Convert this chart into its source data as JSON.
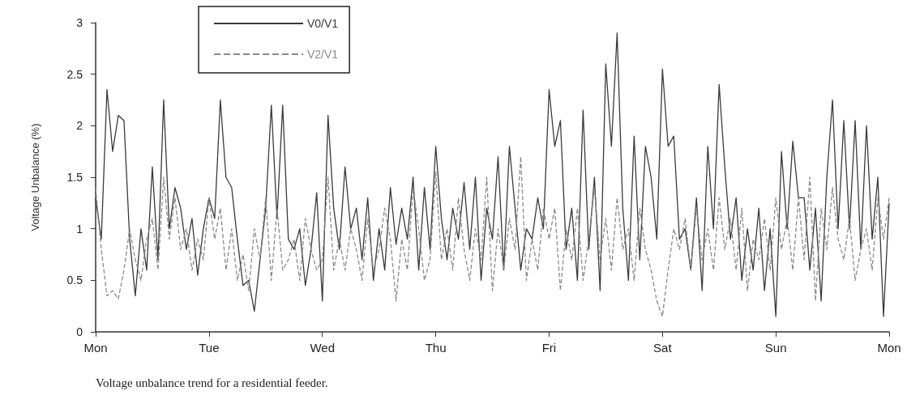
{
  "chart_data": {
    "type": "line",
    "ylabel": "Voltage Unbalance (%)",
    "annotations": [
      "Voltage unbalance trend for a residential feeder."
    ],
    "categories": [
      "Mon",
      null,
      null,
      null,
      null,
      null,
      null,
      null,
      null,
      null,
      null,
      null,
      null,
      null,
      null,
      null,
      null,
      null,
      null,
      null,
      "Tue",
      null,
      null,
      null,
      null,
      null,
      null,
      null,
      null,
      null,
      null,
      null,
      null,
      null,
      null,
      null,
      null,
      null,
      null,
      null,
      "Wed",
      null,
      null,
      null,
      null,
      null,
      null,
      null,
      null,
      null,
      null,
      null,
      null,
      null,
      null,
      null,
      null,
      null,
      null,
      null,
      "Thu",
      null,
      null,
      null,
      null,
      null,
      null,
      null,
      null,
      null,
      null,
      null,
      null,
      null,
      null,
      null,
      null,
      null,
      null,
      null,
      "Fri",
      null,
      null,
      null,
      null,
      null,
      null,
      null,
      null,
      null,
      null,
      null,
      null,
      null,
      null,
      null,
      null,
      null,
      null,
      null,
      "Sat",
      null,
      null,
      null,
      null,
      null,
      null,
      null,
      null,
      null,
      null,
      null,
      null,
      null,
      null,
      null,
      null,
      null,
      null,
      null,
      "Sun",
      null,
      null,
      null,
      null,
      null,
      null,
      null,
      null,
      null,
      null,
      null,
      null,
      null,
      null,
      null,
      null,
      null,
      null,
      null,
      "Mon"
    ],
    "ylim": [
      0,
      3
    ],
    "yticks": [
      0,
      0.5,
      1,
      1.5,
      2,
      2.5,
      3
    ],
    "grid": false,
    "legend": "top left",
    "marker": "none",
    "series": [
      {
        "name": "V0/V1",
        "color": "#3a3a3a",
        "line_style": "solid",
        "values": [
          1.3,
          0.9,
          2.35,
          1.75,
          2.1,
          2.05,
          0.9,
          0.35,
          1.0,
          0.6,
          1.6,
          0.7,
          2.25,
          1.0,
          1.4,
          1.2,
          0.8,
          1.1,
          0.55,
          1.0,
          1.3,
          1.1,
          2.25,
          1.5,
          1.4,
          0.9,
          0.45,
          0.5,
          0.2,
          0.7,
          1.2,
          2.2,
          1.1,
          2.2,
          0.9,
          0.8,
          1.0,
          0.45,
          0.8,
          1.35,
          0.3,
          2.1,
          1.2,
          0.8,
          1.6,
          1.0,
          1.2,
          0.7,
          1.3,
          0.5,
          1.0,
          0.6,
          1.4,
          0.85,
          1.2,
          0.9,
          1.5,
          0.6,
          1.4,
          0.8,
          1.8,
          1.1,
          0.7,
          1.2,
          0.9,
          1.45,
          0.8,
          1.5,
          0.5,
          1.2,
          0.9,
          1.7,
          0.6,
          1.8,
          1.2,
          0.6,
          1.0,
          0.9,
          1.3,
          1.0,
          2.35,
          1.8,
          2.05,
          0.8,
          1.2,
          0.5,
          2.15,
          0.8,
          1.5,
          0.4,
          2.6,
          1.8,
          2.9,
          1.2,
          0.5,
          1.9,
          0.7,
          1.8,
          1.5,
          0.9,
          2.55,
          1.8,
          1.9,
          0.9,
          1.0,
          0.6,
          1.3,
          0.4,
          1.8,
          1.0,
          2.4,
          1.6,
          0.9,
          1.3,
          0.5,
          1.0,
          0.6,
          1.2,
          0.4,
          1.0,
          0.15,
          1.75,
          1.0,
          1.85,
          1.3,
          1.3,
          0.6,
          1.2,
          0.3,
          1.5,
          2.25,
          1.0,
          2.05,
          1.0,
          2.05,
          0.8,
          2.0,
          0.9,
          1.5,
          0.15,
          1.25
        ]
      },
      {
        "name": "V2/V1",
        "color": "#8a8a8a",
        "line_style": "dashed",
        "values": [
          1.4,
          0.8,
          0.35,
          0.4,
          0.32,
          0.6,
          1.0,
          0.7,
          0.5,
          0.9,
          1.1,
          0.6,
          1.5,
          0.9,
          1.3,
          0.8,
          1.0,
          0.6,
          0.9,
          0.7,
          1.3,
          0.9,
          1.2,
          0.6,
          1.0,
          0.5,
          0.75,
          0.4,
          1.0,
          0.7,
          1.3,
          0.5,
          1.2,
          0.6,
          0.7,
          0.9,
          0.5,
          1.1,
          0.8,
          0.6,
          0.7,
          1.5,
          0.6,
          0.9,
          0.6,
          1.0,
          0.8,
          0.5,
          1.1,
          0.6,
          0.8,
          1.2,
          0.9,
          0.3,
          0.9,
          0.6,
          1.4,
          1.0,
          0.5,
          0.7,
          1.55,
          0.7,
          1.0,
          0.6,
          1.3,
          0.8,
          0.5,
          1.0,
          0.7,
          1.5,
          0.4,
          1.0,
          0.6,
          1.1,
          0.8,
          1.7,
          0.5,
          0.9,
          0.6,
          1.2,
          0.9,
          1.2,
          0.4,
          1.0,
          0.7,
          1.2,
          0.5,
          0.9,
          1.4,
          0.7,
          1.1,
          0.6,
          1.3,
          0.8,
          1.0,
          0.5,
          1.2,
          0.8,
          0.6,
          0.3,
          0.15,
          0.6,
          1.0,
          0.8,
          1.1,
          0.6,
          1.2,
          0.7,
          1.0,
          0.6,
          1.3,
          0.8,
          1.1,
          0.6,
          1.2,
          0.4,
          0.9,
          0.7,
          1.1,
          0.6,
          1.3,
          0.8,
          1.1,
          0.6,
          1.3,
          0.7,
          1.5,
          0.3,
          1.2,
          0.8,
          1.4,
          0.9,
          0.7,
          1.1,
          0.5,
          0.8,
          1.0,
          0.6,
          1.3,
          0.9,
          1.3
        ]
      }
    ]
  }
}
